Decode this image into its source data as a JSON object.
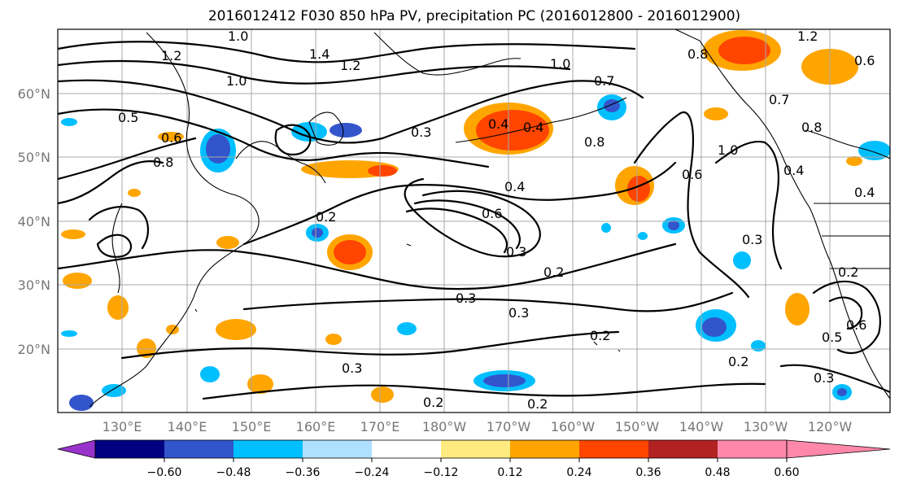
{
  "title": "2016012412 F030 850 hPa PV, precipitation PC (2016012800 - 2016012900)",
  "lat_labels": [
    "60°N",
    "50°N",
    "40°N",
    "30°N",
    "20°N"
  ],
  "lon_labels": [
    "130°E",
    "140°E",
    "150°E",
    "160°E",
    "170°E",
    "180°W",
    "170°W",
    "160°W",
    "150°W",
    "140°W",
    "130°W",
    "120°W"
  ],
  "colorbar": {
    "ticks": [
      "−0.60",
      "−0.48",
      "−0.36",
      "−0.24",
      "−0.12",
      "0.12",
      "0.24",
      "0.36",
      "0.48",
      "0.60"
    ],
    "colors": [
      "#9933cc",
      "#000080",
      "#3355cc",
      "#00bfff",
      "#b0e0ff",
      "#ffffff",
      "#ffea80",
      "#ffa500",
      "#ff4500",
      "#b22222",
      "#ff88aa"
    ]
  },
  "contour_labels": [
    "1.0",
    "1.2",
    "1.4",
    "1.2",
    "1.0",
    "0.5",
    "0.6",
    "0.8",
    "0.4",
    "0.3",
    "0.4",
    "0.8",
    "0.7",
    "1.0",
    "0.8",
    "1.0",
    "0.7",
    "0.8",
    "0.4",
    "1.2",
    "0.4",
    "0.2",
    "0.4",
    "0.6",
    "0.3",
    "0.2",
    "0.6",
    "0.3",
    "0.3",
    "0.3",
    "0.2",
    "0.3",
    "0.2",
    "0.2",
    "0.3",
    "0.5",
    "0.6",
    "0.2",
    "0.2",
    "0.6"
  ]
}
